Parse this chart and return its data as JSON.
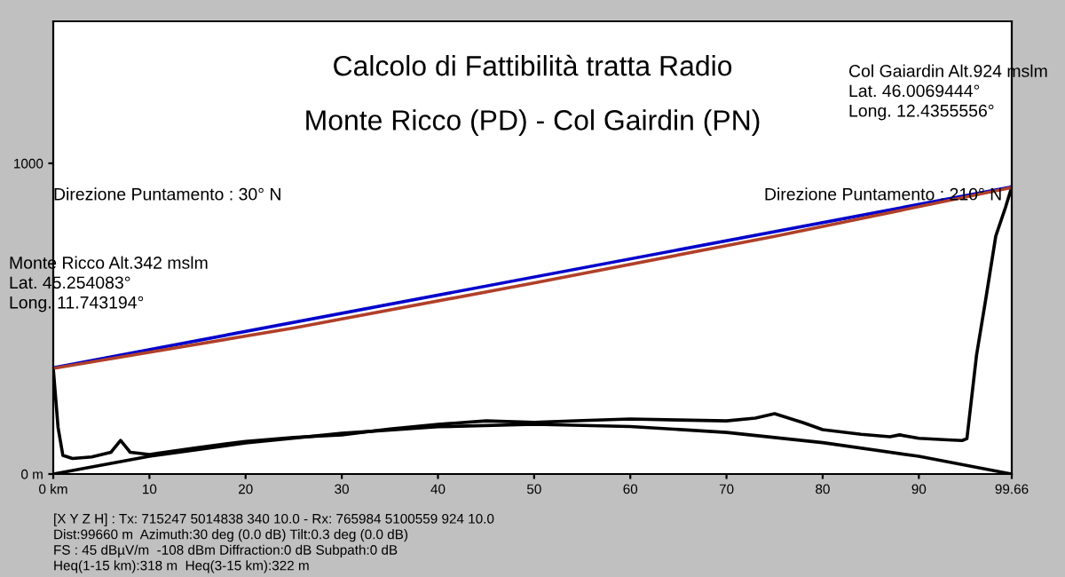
{
  "chart_data": {
    "type": "line",
    "title": "Calcolo di Fattibilità tratta Radio",
    "subtitle": "Monte Ricco (PD) - Col Gairdin (PN)",
    "xlim": [
      0,
      99.66
    ],
    "ylim": [
      0,
      1457
    ],
    "xticks": [
      {
        "value": 0,
        "label": "0 km"
      },
      10,
      20,
      30,
      40,
      50,
      60,
      70,
      80,
      90,
      99.66
    ],
    "yticks": [
      {
        "value": 0,
        "label": "0 m"
      },
      1000
    ],
    "grid": false,
    "legend": false,
    "marker": "none",
    "line_style": "solid",
    "series": [
      {
        "color": "#000000",
        "x": [
          0,
          0.5,
          1,
          2,
          4,
          6,
          7,
          8,
          10,
          15,
          20,
          25,
          30,
          35,
          40,
          45,
          50,
          55,
          60,
          65,
          70,
          73,
          75,
          78,
          80,
          84,
          87,
          88,
          90,
          93,
          94.5,
          95,
          96,
          97,
          98,
          99,
          99.66
        ],
        "values": [
          340,
          150,
          60,
          50,
          55,
          70,
          108,
          70,
          63,
          85,
          105,
          118,
          126,
          145,
          160,
          171,
          166,
          172,
          177,
          174,
          171,
          180,
          194,
          165,
          143,
          128,
          120,
          126,
          115,
          110,
          108,
          114,
          383,
          571,
          766,
          857,
          924
        ]
      },
      {
        "color": "#000000",
        "x": [
          0,
          10,
          20,
          30,
          40,
          50,
          60,
          70,
          80,
          90,
          99.66
        ],
        "values": [
          0,
          57,
          100,
          131,
          152,
          160,
          153,
          134,
          101,
          57,
          0
        ]
      },
      {
        "color": "#0000cc",
        "x": [
          0,
          99.66
        ],
        "values": [
          342,
          924
        ]
      },
      {
        "color": "#b0402a",
        "x": [
          0,
          25,
          50,
          75,
          99.66
        ],
        "values": [
          340,
          470,
          615,
          765,
          922
        ]
      }
    ],
    "annotations": [
      "Direzione Puntamento : 30° N",
      "Direzione Puntamento : 210° N",
      "Monte Ricco Alt.342 mslm\nLat. 45.254083°\nLong. 11.743194°",
      "Col Gaiardin Alt.924 mslm\nLat. 46.0069444°\nLong. 12.4355556°",
      "[X Y Z H] : Tx: 715247 5014838 340 10.0 - Rx: 765984 5100559 924 10.0\nDist:99660 m  Azimuth:30 deg (0.0 dB) Tilt:0.3 deg (0.0 dB)\nFS : 45 dBµV/m  -108 dBm Diffraction:0 dB Subpath:0 dB\nHeq(1-15 km):318 m  Heq(3-15 km):322 m"
    ]
  }
}
